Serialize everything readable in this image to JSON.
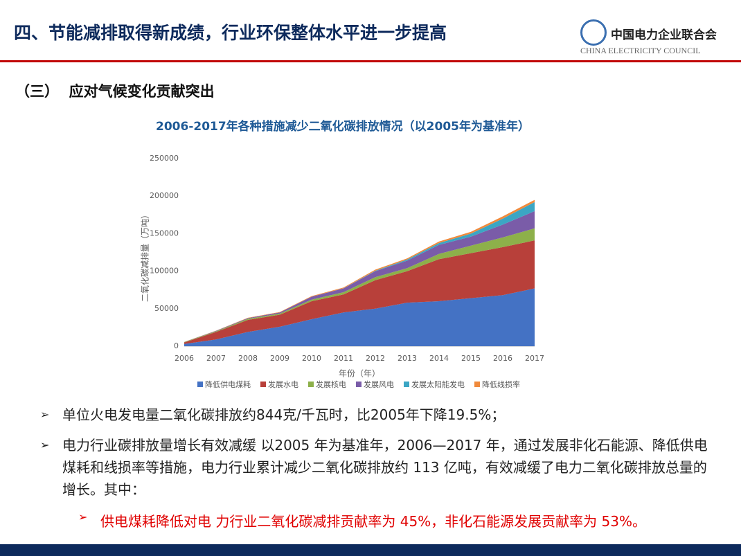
{
  "header": {
    "title": "四、节能减排取得新成绩，行业环保整体水平进一步提高",
    "org_name": "中国电力企业联合会",
    "org_name_en": "CHINA ELECTRICITY COUNCIL"
  },
  "section": "（三）  应对气候变化贡献突出",
  "chart_data": {
    "type": "stacked-area",
    "title": "2006-2017年各种措施减少二氧化碳排放情况（以2005年为基准年）",
    "y_label": "二氧化碳减排量（万吨）",
    "x_label": "年份（年）",
    "categories": [
      "2006",
      "2007",
      "2008",
      "2009",
      "2010",
      "2011",
      "2012",
      "2013",
      "2014",
      "2015",
      "2016",
      "2017"
    ],
    "series": [
      {
        "name": "降低供电煤耗",
        "color": "#4472c4",
        "values": [
          3000,
          9000,
          19000,
          26000,
          36000,
          45000,
          50000,
          58000,
          60000,
          64000,
          68000,
          77000
        ]
      },
      {
        "name": "发展水电",
        "color": "#b8403a",
        "values": [
          2000,
          10000,
          16000,
          16000,
          24000,
          24000,
          38000,
          42000,
          56000,
          60000,
          64000,
          64000
        ]
      },
      {
        "name": "发展核电",
        "color": "#8db04a",
        "values": [
          500,
          1000,
          1500,
          1500,
          2000,
          3000,
          4000,
          4000,
          7000,
          10000,
          13000,
          16000
        ]
      },
      {
        "name": "发展风电",
        "color": "#7a5ca8",
        "values": [
          100,
          500,
          1000,
          1500,
          4000,
          5000,
          8000,
          10000,
          12000,
          12000,
          17000,
          23000
        ]
      },
      {
        "name": "发展太阳能发电",
        "color": "#3ba6c4",
        "values": [
          0,
          0,
          0,
          0,
          0,
          200,
          500,
          1500,
          2500,
          4000,
          8000,
          12000
        ]
      },
      {
        "name": "降低线损率",
        "color": "#f08a3c",
        "values": [
          200,
          300,
          400,
          500,
          800,
          1000,
          1500,
          1500,
          2000,
          2500,
          3000,
          3000
        ]
      }
    ],
    "ylim": [
      0,
      250000
    ],
    "yticks": [
      0,
      50000,
      100000,
      150000,
      200000,
      250000
    ],
    "grid": false
  },
  "bullets": [
    "单位火电发电量二氧化碳排放约844克/千瓦时，比2005年下降19.5%；",
    "电力行业碳排放量增长有效减缓    以2005 年为基准年，2006—2017 年，通过发展非化石能源、降低供电煤耗和线损率等措施，电力行业累计减少二氧化碳排放约 113 亿吨，有效减缓了电力二氧化碳排放总量的增长。其中："
  ],
  "sub_bullets": [
    "供电煤耗降低对电 力行业二氧化碳减排贡献率为 45%，非化石能源发展贡献率为 53%。"
  ]
}
